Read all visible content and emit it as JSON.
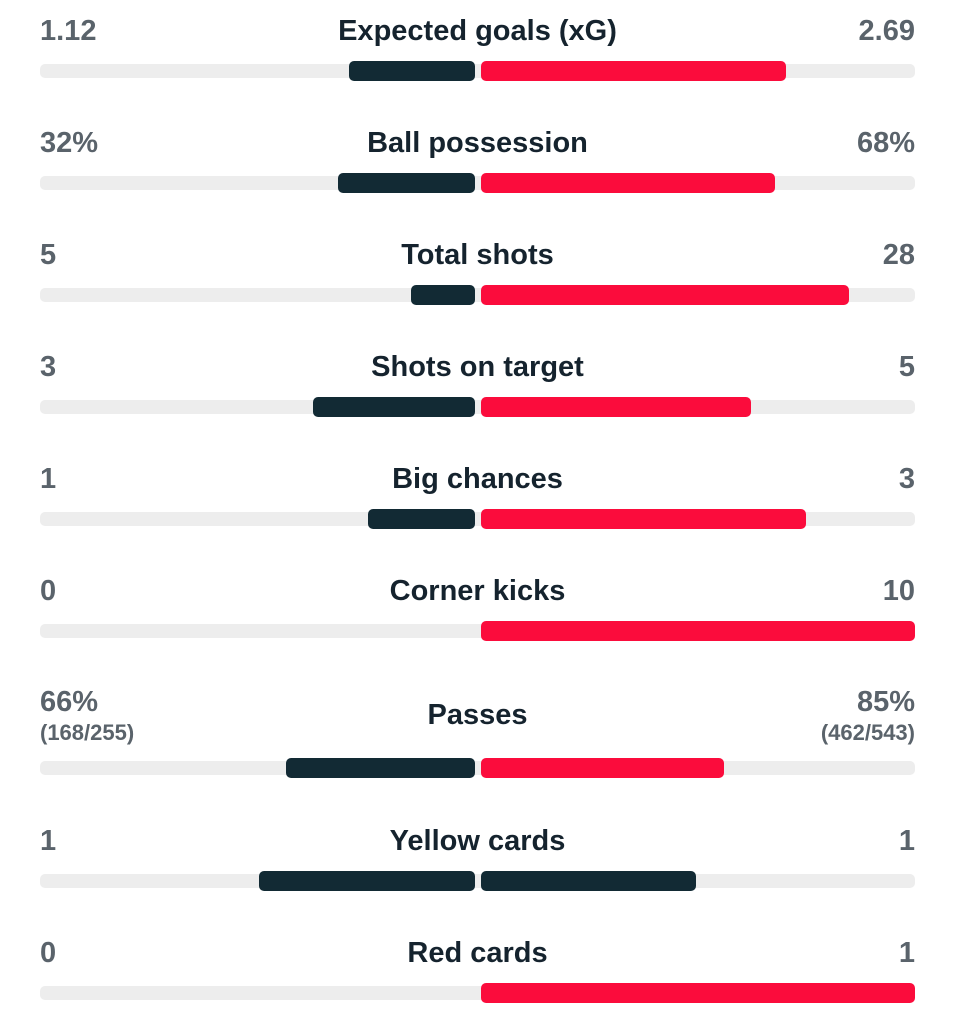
{
  "colors": {
    "home_bar": "#122a34",
    "away_bar": "#fb0c3c",
    "track": "#ededed",
    "value_text": "#5a636b",
    "label_text": "#15232e"
  },
  "rows": [
    {
      "label": "Expected goals (xG)",
      "home": "1.12",
      "away": "2.69",
      "home_pct": 29.4,
      "away_pct": 70.6,
      "home_color": "home_bar",
      "away_color": "away_bar"
    },
    {
      "label": "Ball possession",
      "home": "32%",
      "away": "68%",
      "home_pct": 32,
      "away_pct": 68,
      "home_color": "home_bar",
      "away_color": "away_bar"
    },
    {
      "label": "Total shots",
      "home": "5",
      "away": "28",
      "home_pct": 15.2,
      "away_pct": 84.8,
      "home_color": "home_bar",
      "away_color": "away_bar"
    },
    {
      "label": "Shots on target",
      "home": "3",
      "away": "5",
      "home_pct": 37.5,
      "away_pct": 62.5,
      "home_color": "home_bar",
      "away_color": "away_bar"
    },
    {
      "label": "Big chances",
      "home": "1",
      "away": "3",
      "home_pct": 25,
      "away_pct": 75,
      "home_color": "home_bar",
      "away_color": "away_bar"
    },
    {
      "label": "Corner kicks",
      "home": "0",
      "away": "10",
      "home_pct": 0,
      "away_pct": 100,
      "home_color": "home_bar",
      "away_color": "away_bar"
    },
    {
      "label": "Passes",
      "home": "66%",
      "away": "85%",
      "home_sub": "(168/255)",
      "away_sub": "(462/543)",
      "home_pct": 43.7,
      "away_pct": 56.3,
      "home_color": "home_bar",
      "away_color": "away_bar"
    },
    {
      "label": "Yellow cards",
      "home": "1",
      "away": "1",
      "home_pct": 50,
      "away_pct": 50,
      "home_color": "home_bar",
      "away_color": "home_bar"
    },
    {
      "label": "Red cards",
      "home": "0",
      "away": "1",
      "home_pct": 0,
      "away_pct": 100,
      "home_color": "home_bar",
      "away_color": "away_bar"
    }
  ],
  "chart_data": {
    "type": "bar",
    "subtype": "opposed-horizontal-match-stats",
    "categories": [
      "Expected goals (xG)",
      "Ball possession",
      "Total shots",
      "Shots on target",
      "Big chances",
      "Corner kicks",
      "Passes",
      "Yellow cards",
      "Red cards"
    ],
    "series": [
      {
        "name": "home",
        "values": [
          1.12,
          32,
          5,
          3,
          1,
          0,
          66,
          1,
          0
        ],
        "labels": [
          "1.12",
          "32%",
          "5",
          "3",
          "1",
          "0",
          "66% (168/255)",
          "1",
          "0"
        ],
        "color": "#122a34"
      },
      {
        "name": "away",
        "values": [
          2.69,
          68,
          28,
          5,
          3,
          10,
          85,
          1,
          1
        ],
        "labels": [
          "2.69",
          "68%",
          "28",
          "5",
          "3",
          "10",
          "85% (462/543)",
          "1",
          "1"
        ],
        "color": "#fb0c3c"
      }
    ],
    "layout": {
      "bars_grow_outward_from_center": true,
      "bar_length_rule": "value / (home + away) of half track width",
      "tied_rows_use_home_color_both_sides": true,
      "grid": false,
      "legend": false
    }
  }
}
